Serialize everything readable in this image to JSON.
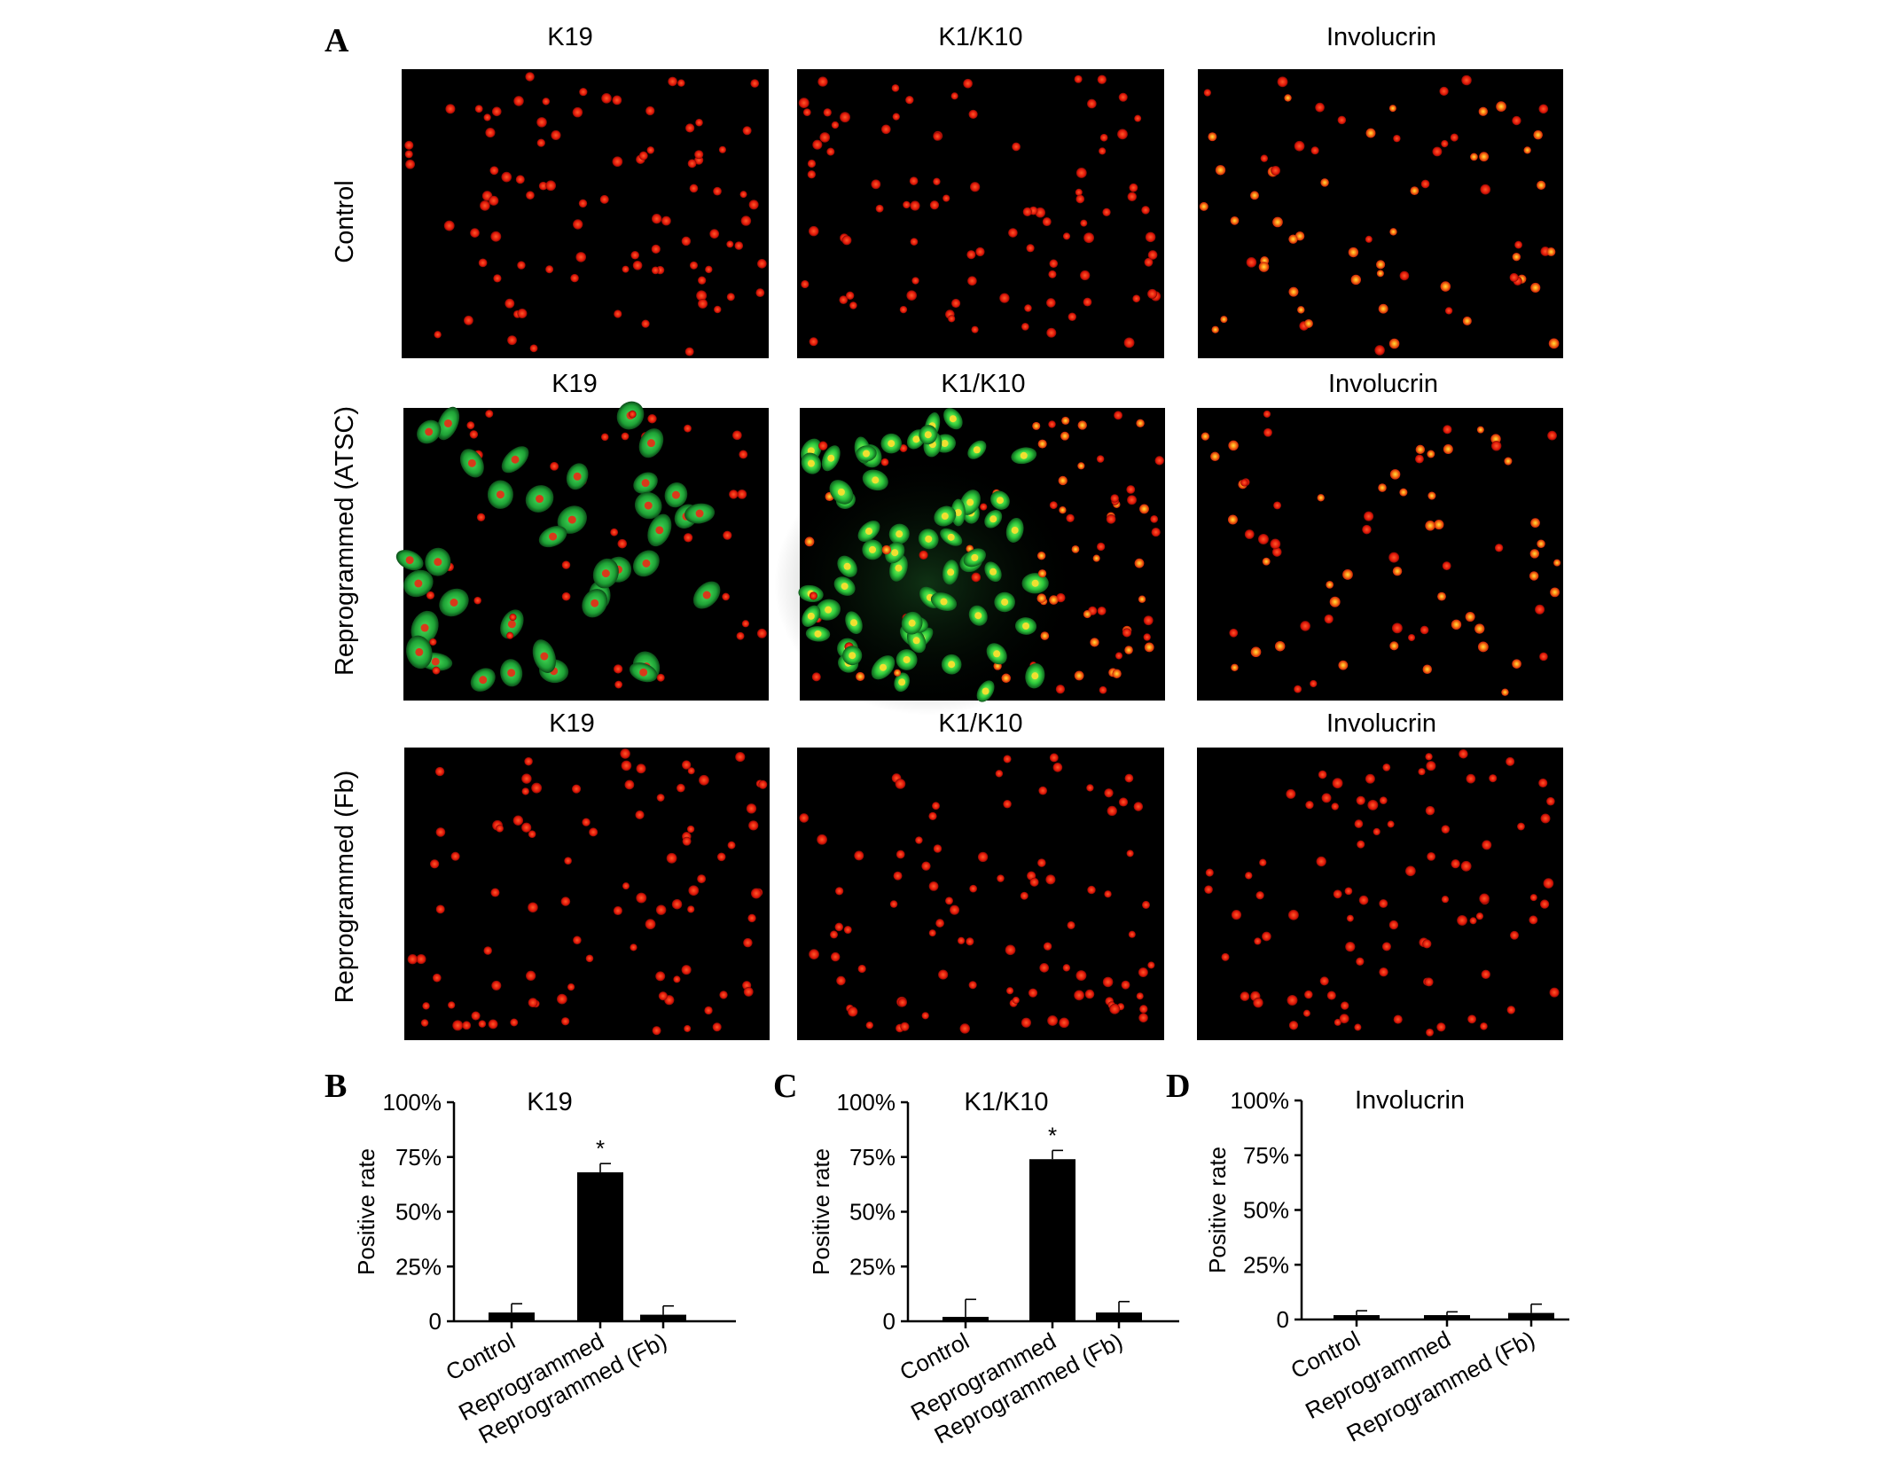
{
  "panel_a": {
    "letter": "A",
    "rows": [
      {
        "label": "Control",
        "columns": [
          "K19",
          "K1/K10",
          "Involucrin"
        ]
      },
      {
        "label": "Reprogrammed (ATSC)",
        "columns": [
          "K19",
          "K1/K10",
          "Involucrin"
        ]
      },
      {
        "label": "Reprogrammed (Fb)",
        "columns": [
          "K19",
          "K1/K10",
          "Involucrin"
        ]
      }
    ],
    "cell_colors": {
      "red": "#ff2a10",
      "orange": "#ffb020",
      "green": "#22c53a",
      "background": "#000000"
    },
    "image_content": [
      [
        "red",
        "red",
        "red-orange"
      ],
      [
        "green-red",
        "green-yellow",
        "red-orange"
      ],
      [
        "red",
        "red",
        "red"
      ]
    ]
  },
  "chart_data": [
    {
      "letter": "B",
      "type": "bar",
      "title": "K19",
      "ylabel": "Positive rate",
      "categories": [
        "Control",
        "Reprogrammed",
        "Reprogrammed (Fb)"
      ],
      "values": [
        4,
        68,
        3
      ],
      "errors": [
        4,
        4,
        4
      ],
      "significance": [
        "",
        "*",
        ""
      ],
      "ylim": [
        0,
        100
      ],
      "yticks": [
        "0",
        "25%",
        "50%",
        "75%",
        "100%"
      ],
      "bar_color": "#000000"
    },
    {
      "letter": "C",
      "type": "bar",
      "title": "K1/K10",
      "ylabel": "Positive rate",
      "categories": [
        "Control",
        "Reprogrammed",
        "Reprogrammed (Fb)"
      ],
      "values": [
        2,
        74,
        4
      ],
      "errors": [
        8,
        4,
        5
      ],
      "significance": [
        "",
        "*",
        ""
      ],
      "ylim": [
        0,
        100
      ],
      "yticks": [
        "0",
        "25%",
        "50%",
        "75%",
        "100%"
      ],
      "bar_color": "#000000"
    },
    {
      "letter": "D",
      "type": "bar",
      "title": "Involucrin",
      "ylabel": "Positive rate",
      "categories": [
        "Control",
        "Reprogrammed",
        "Reprogrammed (Fb)"
      ],
      "values": [
        2,
        2,
        3
      ],
      "errors": [
        2,
        1.5,
        4
      ],
      "significance": [
        "",
        "",
        ""
      ],
      "ylim": [
        0,
        100
      ],
      "yticks": [
        "0",
        "25%",
        "50%",
        "75%",
        "100%"
      ],
      "bar_color": "#000000"
    }
  ]
}
